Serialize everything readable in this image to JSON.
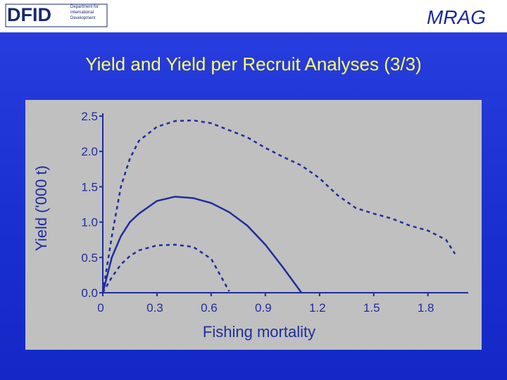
{
  "header": {
    "left_logo": "DFID",
    "left_logo_text": "Department for International Development",
    "right_logo": "MRAG"
  },
  "chart_data": {
    "type": "line",
    "title": "Yield and Yield per Recruit Analyses (3/3)",
    "x_label": "Fishing mortality",
    "y_label": "Yield ('000 t)",
    "x": [
      0,
      0.05,
      0.1,
      0.15,
      0.2,
      0.3,
      0.4,
      0.5,
      0.6,
      0.7,
      0.8,
      0.9,
      1.0,
      1.1,
      1.2,
      1.3,
      1.4,
      1.5,
      1.6,
      1.7,
      1.8,
      1.9,
      1.95
    ],
    "series": [
      {
        "color": "#1f2d9e",
        "style": "dashed",
        "values": [
          0,
          0.8,
          1.5,
          1.9,
          2.15,
          2.35,
          2.43,
          2.44,
          2.4,
          2.3,
          2.2,
          2.05,
          1.92,
          1.8,
          1.62,
          1.38,
          1.2,
          1.12,
          1.05,
          0.95,
          0.88,
          0.75,
          0.55
        ]
      },
      {
        "color": "#1f2d9e",
        "style": "solid",
        "values": [
          0,
          0.5,
          0.8,
          1.0,
          1.12,
          1.3,
          1.36,
          1.34,
          1.27,
          1.14,
          0.95,
          0.68,
          0.35,
          0,
          null,
          null,
          null,
          null,
          null,
          null,
          null,
          null,
          null
        ]
      },
      {
        "color": "#1f2d9e",
        "style": "dashed",
        "values": [
          0,
          0.22,
          0.4,
          0.52,
          0.6,
          0.67,
          0.68,
          0.65,
          0.48,
          0.02,
          null,
          null,
          null,
          null,
          null,
          null,
          null,
          null,
          null,
          null,
          null,
          null,
          null
        ]
      }
    ],
    "xlim": [
      0,
      2.0
    ],
    "ylim": [
      0,
      2.5
    ],
    "xticks": [
      0,
      0.3,
      0.6,
      0.9,
      1.2,
      1.5,
      1.8
    ],
    "yticks": [
      {
        "value": 0,
        "label": "0.0"
      },
      0.5,
      {
        "value": 1,
        "label": "1.0"
      },
      1.5,
      {
        "value": 2,
        "label": "2.0"
      },
      2.5
    ],
    "background": "#c0c0c0"
  }
}
